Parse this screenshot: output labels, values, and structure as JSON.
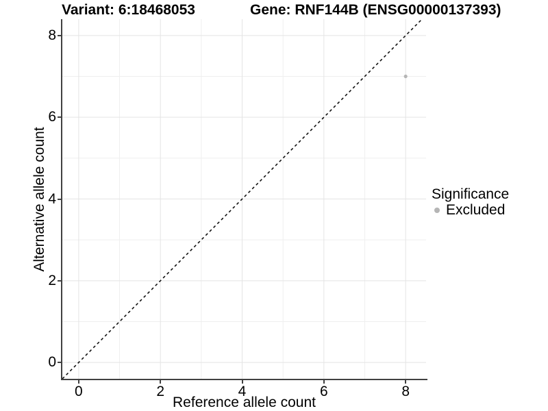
{
  "titles": {
    "left": "Variant: 6:18468053",
    "right": "Gene: RNF144B (ENSG00000137393)"
  },
  "chart_data": {
    "type": "scatter",
    "title_left": "Variant: 6:18468053",
    "title_right": "Gene: RNF144B (ENSG00000137393)",
    "xlabel": "Reference allele count",
    "ylabel": "Alternative allele count",
    "xlim": [
      -0.4,
      8.5
    ],
    "ylim": [
      -0.4,
      8.4
    ],
    "xticks": [
      0,
      2,
      4,
      6,
      8
    ],
    "yticks": [
      0,
      2,
      4,
      6,
      8
    ],
    "xticks_minor": [
      1,
      3,
      5,
      7
    ],
    "yticks_minor": [
      1,
      3,
      5,
      7
    ],
    "grid": "major+minor",
    "identity_line": {
      "type": "abline",
      "slope": 1,
      "intercept": 0,
      "style": "dashed",
      "color": "#111111"
    },
    "series": [
      {
        "name": "Excluded",
        "marker": "circle",
        "color": "#b5b5b5",
        "points": [
          {
            "x": 8,
            "y": 7
          }
        ]
      }
    ],
    "legend": {
      "title": "Significance",
      "position": "right"
    },
    "colors": {
      "grid_major": "#e4e4e4",
      "grid_minor": "#efefef",
      "axis_line": "#404040",
      "tick": "#404040",
      "text": "#000000"
    }
  }
}
